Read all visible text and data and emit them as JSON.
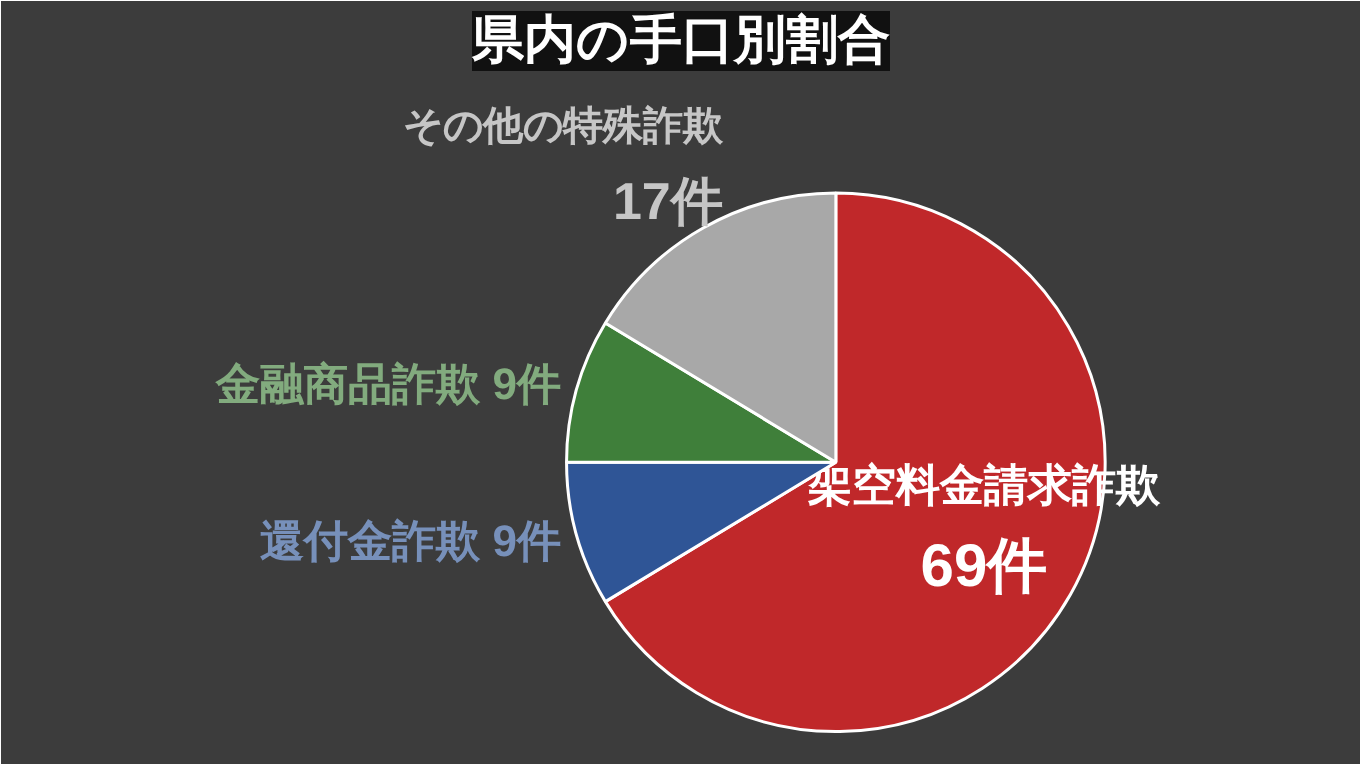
{
  "chart_data": {
    "type": "pie",
    "title": "県内の手口別割合",
    "categories": [
      "架空料金請求詐欺",
      "還付金詐欺",
      "金融商品詐欺",
      "その他の特殊詐欺"
    ],
    "values": [
      69,
      9,
      9,
      17
    ],
    "colors": [
      "#c0282a",
      "#2f5596",
      "#3f7f3a",
      "#a8a8a8"
    ],
    "value_labels": [
      "69件",
      "9件",
      "9件",
      "17件"
    ]
  }
}
